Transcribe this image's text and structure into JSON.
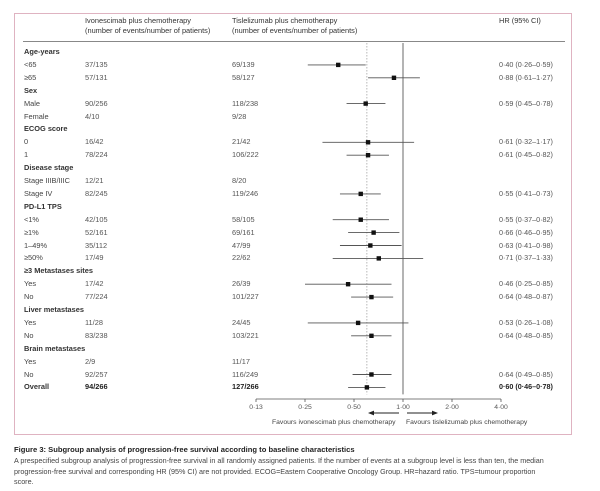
{
  "header": {
    "col_ivo_line1": "Ivonescimab plus chemotherapy",
    "col_ivo_line2": "(number of events/number of patients)",
    "col_tis_line1": "Tislelizumab plus chemotherapy",
    "col_tis_line2": "(number of events/number of patients)",
    "col_hr": "HR (95% CI)"
  },
  "chart_data": {
    "type": "forest",
    "title": "Figure 3: Subgroup analysis of progression-free survival according to baseline characteristics",
    "xscale": "log2",
    "xlim": [
      0.125,
      4.0
    ],
    "xticks": [
      0.125,
      0.25,
      0.5,
      1.0,
      2.0,
      4.0
    ],
    "xtick_labels": [
      "0·13",
      "0·25",
      "0·50",
      "1·00",
      "2·00",
      "4·00"
    ],
    "reference_line": 1.0,
    "overall_line": 0.6,
    "favours_left": "Favours ivonescimab plus chemotherapy",
    "favours_right": "Favours tislelizumab plus chemotherapy",
    "rows": [
      {
        "kind": "group",
        "label": "Age-years"
      },
      {
        "kind": "item",
        "label": "<65",
        "ivo": "37/135",
        "tis": "69/139",
        "hr": 0.4,
        "lo": 0.26,
        "hi": 0.59,
        "hr_text": "0·40 (0·26–0·59)"
      },
      {
        "kind": "item",
        "label": "≥65",
        "ivo": "57/131",
        "tis": "58/127",
        "hr": 0.88,
        "lo": 0.61,
        "hi": 1.27,
        "hr_text": "0·88 (0·61–1·27)"
      },
      {
        "kind": "group",
        "label": "Sex"
      },
      {
        "kind": "item",
        "label": "Male",
        "ivo": "90/256",
        "tis": "118/238",
        "hr": 0.59,
        "lo": 0.45,
        "hi": 0.78,
        "hr_text": "0·59 (0·45–0·78)"
      },
      {
        "kind": "item",
        "label": "Female",
        "ivo": "4/10",
        "tis": "9/28"
      },
      {
        "kind": "group",
        "label": "ECOG score"
      },
      {
        "kind": "item",
        "label": "0",
        "ivo": "16/42",
        "tis": "21/42",
        "hr": 0.61,
        "lo": 0.32,
        "hi": 1.17,
        "hr_text": "0·61 (0·32–1·17)"
      },
      {
        "kind": "item",
        "label": "1",
        "ivo": "78/224",
        "tis": "106/222",
        "hr": 0.61,
        "lo": 0.45,
        "hi": 0.82,
        "hr_text": "0·61 (0·45–0·82)"
      },
      {
        "kind": "group",
        "label": "Disease stage"
      },
      {
        "kind": "item",
        "label": "Stage IIIB/IIIC",
        "ivo": "12/21",
        "tis": "8/20"
      },
      {
        "kind": "item",
        "label": "Stage IV",
        "ivo": "82/245",
        "tis": "119/246",
        "hr": 0.55,
        "lo": 0.41,
        "hi": 0.73,
        "hr_text": "0·55 (0·41–0·73)"
      },
      {
        "kind": "group",
        "label": "PD-L1 TPS"
      },
      {
        "kind": "item",
        "label": "<1%",
        "ivo": "42/105",
        "tis": "58/105",
        "hr": 0.55,
        "lo": 0.37,
        "hi": 0.82,
        "hr_text": "0·55 (0·37–0·82)"
      },
      {
        "kind": "item",
        "label": "≥1%",
        "ivo": "52/161",
        "tis": "69/161",
        "hr": 0.66,
        "lo": 0.46,
        "hi": 0.95,
        "hr_text": "0·66 (0·46–0·95)"
      },
      {
        "kind": "item",
        "label": "1–49%",
        "ivo": "35/112",
        "tis": "47/99",
        "hr": 0.63,
        "lo": 0.41,
        "hi": 0.98,
        "hr_text": "0·63 (0·41–0·98)"
      },
      {
        "kind": "item",
        "label": "≥50%",
        "ivo": "17/49",
        "tis": "22/62",
        "hr": 0.71,
        "lo": 0.37,
        "hi": 1.33,
        "hr_text": "0·71 (0·37–1·33)"
      },
      {
        "kind": "group",
        "label": "≥3 Metastases sites"
      },
      {
        "kind": "item",
        "label": "Yes",
        "ivo": "17/42",
        "tis": "26/39",
        "hr": 0.46,
        "lo": 0.25,
        "hi": 0.85,
        "hr_text": "0·46 (0·25–0·85)"
      },
      {
        "kind": "item",
        "label": "No",
        "ivo": "77/224",
        "tis": "101/227",
        "hr": 0.64,
        "lo": 0.48,
        "hi": 0.87,
        "hr_text": "0·64 (0·48–0·87)"
      },
      {
        "kind": "group",
        "label": "Liver metastases"
      },
      {
        "kind": "item",
        "label": "Yes",
        "ivo": "11/28",
        "tis": "24/45",
        "hr": 0.53,
        "lo": 0.26,
        "hi": 1.08,
        "hr_text": "0·53 (0·26–1·08)"
      },
      {
        "kind": "item",
        "label": "No",
        "ivo": "83/238",
        "tis": "103/221",
        "hr": 0.64,
        "lo": 0.48,
        "hi": 0.85,
        "hr_text": "0·64 (0·48–0·85)"
      },
      {
        "kind": "group",
        "label": "Brain metastases"
      },
      {
        "kind": "item",
        "label": "Yes",
        "ivo": "2/9",
        "tis": "11/17"
      },
      {
        "kind": "item",
        "label": "No",
        "ivo": "92/257",
        "tis": "116/249",
        "hr": 0.64,
        "lo": 0.49,
        "hi": 0.85,
        "hr_text": "0·64 (0·49–0·85)"
      },
      {
        "kind": "overall",
        "label": "Overall",
        "ivo": "94/266",
        "tis": "127/266",
        "hr": 0.6,
        "lo": 0.46,
        "hi": 0.78,
        "hr_text": "0·60 (0·46–0·78)"
      }
    ]
  },
  "caption": {
    "title": "Figure 3: Subgroup analysis of progression-free survival according to baseline characteristics",
    "line1": "A prespecified subgroup analysis of progression-free survival in all randomly assigned patients. If the number of events at a subgroup level is less than ten, the median",
    "line2": "progression-free survival and corresponding HR (95% CI) are not provided. ECOG=Eastern Cooperative Oncology Group. HR=hazard ratio. TPS=tumour proportion",
    "line3": "score."
  }
}
